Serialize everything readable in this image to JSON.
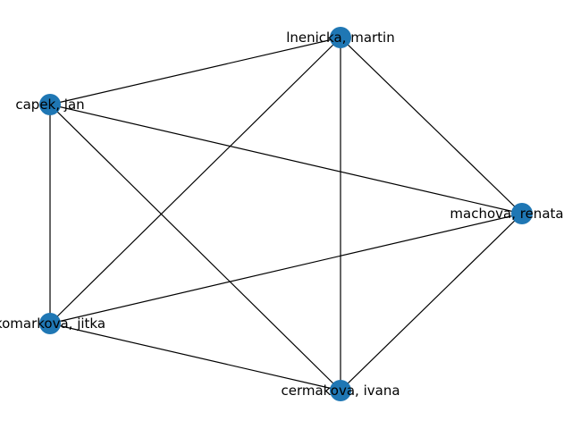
{
  "graph": {
    "node_color": "#1f77b4",
    "edge_color": "#000000",
    "nodes": [
      {
        "id": "lnenicka",
        "label": "lnenicka, martin"
      },
      {
        "id": "capek",
        "label": "capek, jan"
      },
      {
        "id": "machova",
        "label": "machova, renata"
      },
      {
        "id": "komarkova",
        "label": "komarkova, jitka"
      },
      {
        "id": "cermakova",
        "label": "cermakova, ivana"
      }
    ],
    "edges": [
      [
        "lnenicka",
        "capek"
      ],
      [
        "lnenicka",
        "machova"
      ],
      [
        "lnenicka",
        "komarkova"
      ],
      [
        "lnenicka",
        "cermakova"
      ],
      [
        "capek",
        "machova"
      ],
      [
        "capek",
        "komarkova"
      ],
      [
        "capek",
        "cermakova"
      ],
      [
        "machova",
        "komarkova"
      ],
      [
        "machova",
        "cermakova"
      ],
      [
        "komarkova",
        "cermakova"
      ]
    ]
  }
}
